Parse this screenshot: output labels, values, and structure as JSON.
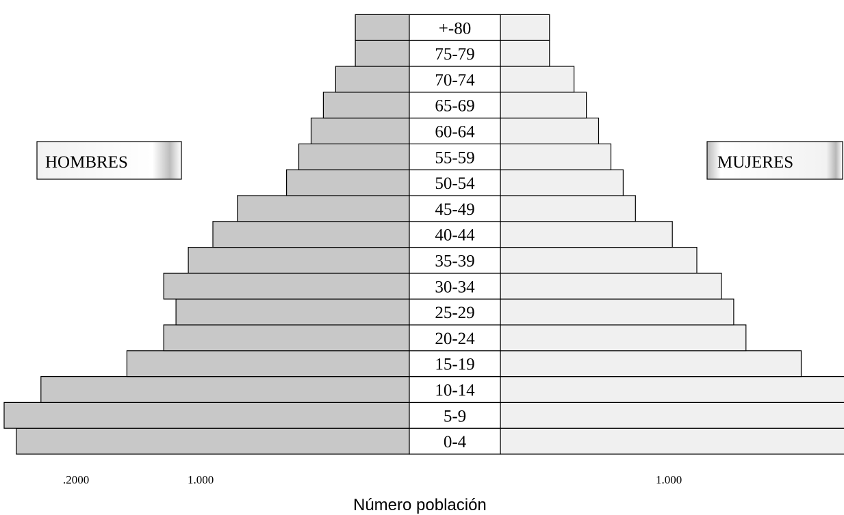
{
  "chart_data": {
    "type": "bar",
    "orientation": "horizontal-population-pyramid",
    "categories": [
      "0-4",
      "5-9",
      "10-14",
      "15-19",
      "20-24",
      "25-29",
      "30-34",
      "35-39",
      "40-44",
      "45-49",
      "50-54",
      "55-59",
      "60-64",
      "65-69",
      "70-74",
      "75-79",
      "+-80"
    ],
    "series": [
      {
        "name": "HOMBRES",
        "color": "#c8c8c8",
        "values": [
          1600,
          1650,
          1500,
          1150,
          1000,
          950,
          1000,
          900,
          800,
          700,
          500,
          450,
          400,
          350,
          300,
          220,
          220
        ]
      },
      {
        "name": "MUJERES",
        "color": "#f0f0f0",
        "values": [
          1500,
          1515,
          1435,
          1225,
          1000,
          950,
          900,
          800,
          700,
          550,
          500,
          450,
          400,
          350,
          300,
          200,
          200
        ]
      }
    ],
    "xlabel": "Número población",
    "x_ticks_left": [
      ".2000",
      "1.000"
    ],
    "x_ticks_right": [
      "1.000"
    ],
    "legend": {
      "left": "HOMBRES",
      "right": "MUJERES"
    }
  }
}
